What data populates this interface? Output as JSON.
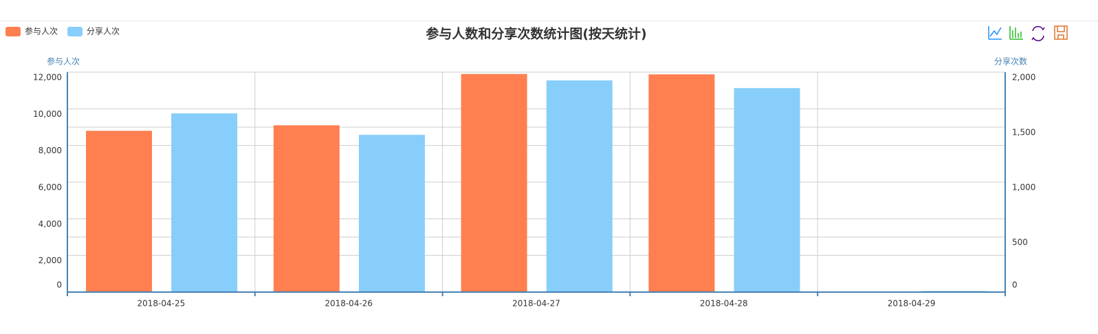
{
  "chart_data": {
    "type": "bar",
    "title": "参与人数和分享次数统计图(按天统计)",
    "categories": [
      "2018-04-25",
      "2018-04-26",
      "2018-04-27",
      "2018-04-28",
      "2018-04-29"
    ],
    "series": [
      {
        "name": "参与人次",
        "color": "#ff7f50",
        "values": [
          8800,
          9100,
          11900,
          11880,
          0
        ]
      },
      {
        "name": "分享人次",
        "color": "#87cefa",
        "axis": "y2",
        "values": [
          1625,
          1430,
          1925,
          1855,
          10
        ]
      }
    ],
    "y_label": "参与人次",
    "y2_label": "分享次数",
    "ylim": [
      0,
      12000
    ],
    "yticks": [
      0,
      {
        "value": 2000,
        "label": "2,000"
      },
      {
        "value": 4000,
        "label": "4,000"
      },
      {
        "value": 6000,
        "label": "6,000"
      },
      {
        "value": 8000,
        "label": "8,000"
      },
      {
        "value": 10000,
        "label": "10,000"
      },
      {
        "value": 12000,
        "label": "12,000"
      }
    ],
    "y2lim": [
      0,
      2000
    ],
    "y2ticks": [
      0,
      500,
      {
        "value": 1000,
        "label": "1,000"
      },
      {
        "value": 1500,
        "label": "1,500"
      },
      {
        "value": 2000,
        "label": "2,000"
      }
    ],
    "grid": true
  }
}
